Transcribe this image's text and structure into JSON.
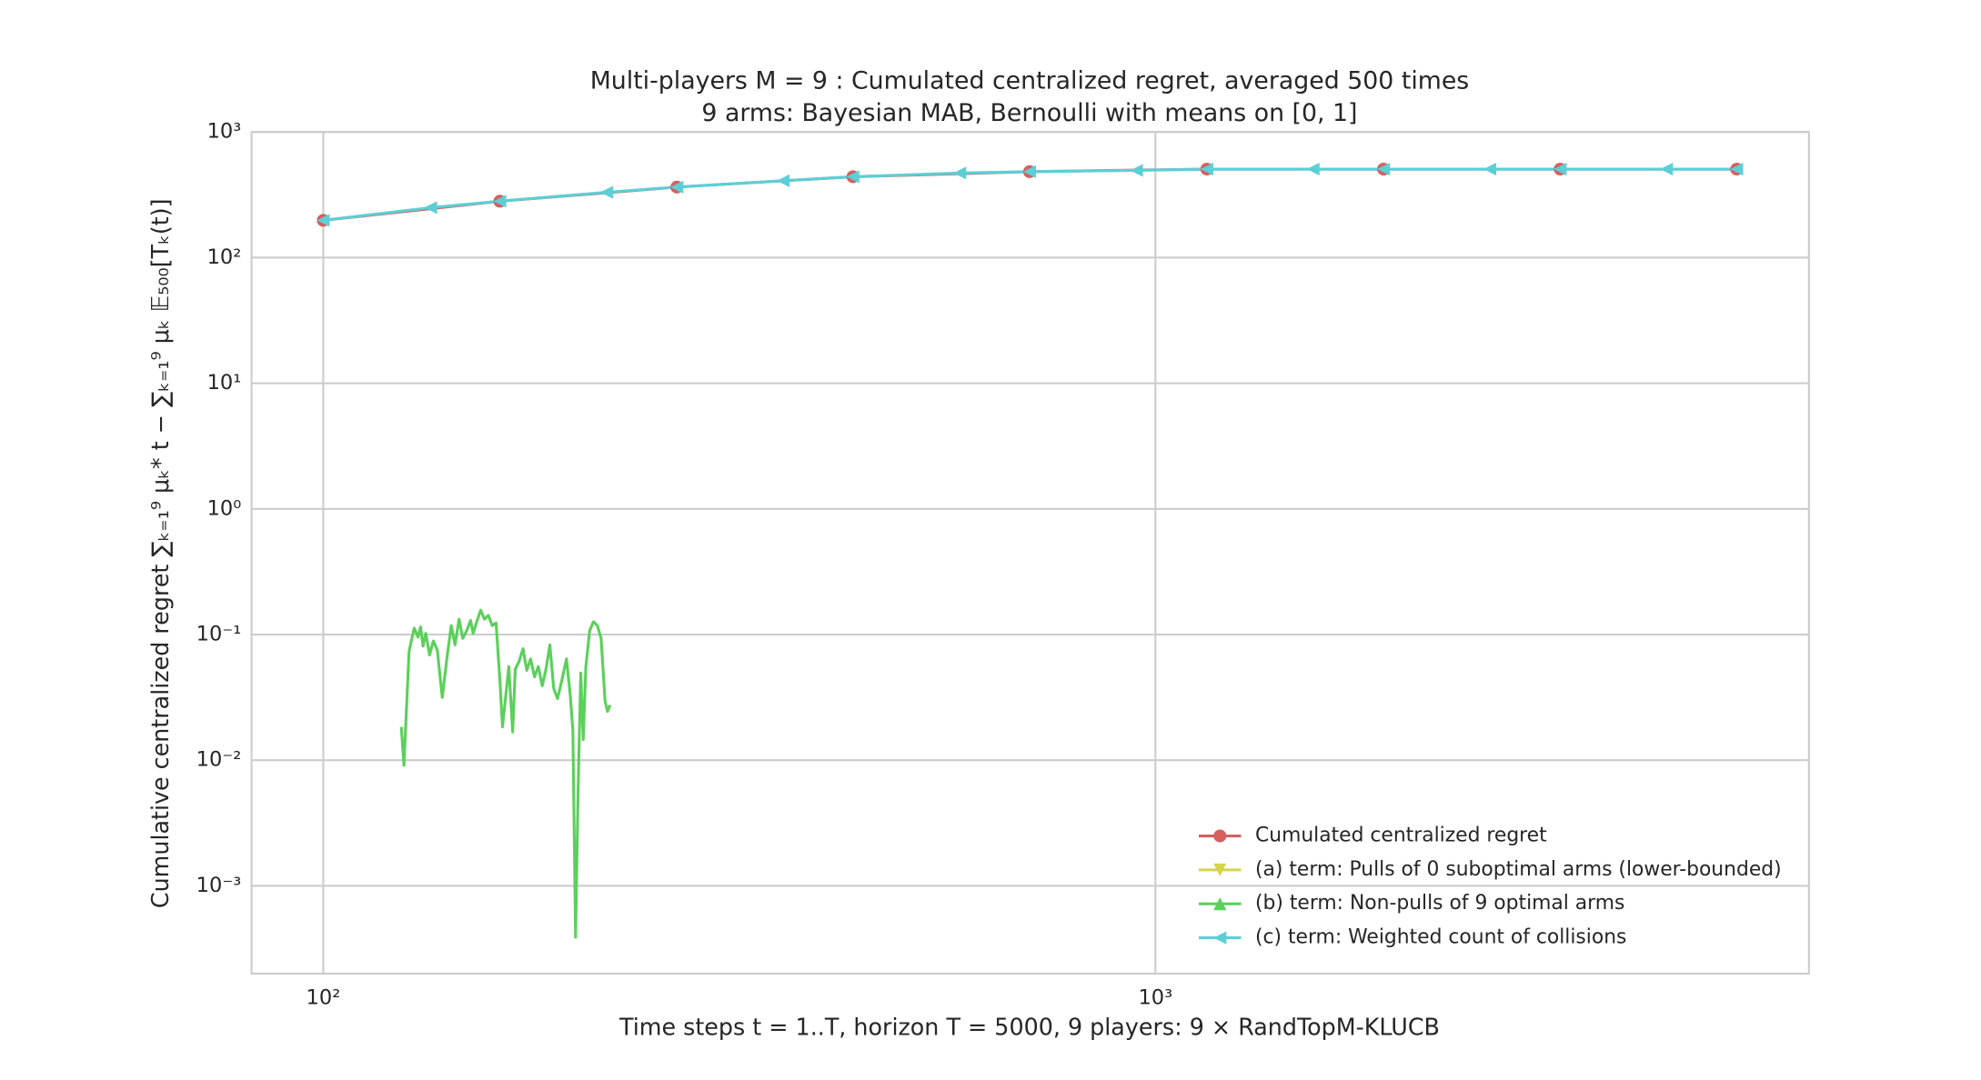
{
  "chart_data": {
    "type": "line",
    "title": "Multi-players M = 9 : Cumulated centralized regret, averaged 500 times",
    "subtitle": "9 arms: Bayesian MAB, Bernoulli with means on [0, 1]",
    "x_label": "Time steps t = 1..T, horizon T = 5000, 9 players: 9 × RandTopM-KLUCB",
    "y_label": "Cumulative centralized regret ∑ₖ₌₁⁹ μₖ* t − ∑ₖ₌₁⁹ μₖ 𝔼₅₀₀[Tₖ(t)]",
    "x_log": true,
    "y_log": true,
    "grid": true,
    "legend_position": "lower right",
    "xlim": [
      82,
      6100
    ],
    "ylim": [
      0.0002,
      1000
    ],
    "xticks": [
      {
        "value": 100,
        "label": "10²"
      },
      {
        "value": 1000,
        "label": "10³"
      }
    ],
    "yticks": [
      {
        "value": 0.001,
        "label": "10⁻³"
      },
      {
        "value": 0.01,
        "label": "10⁻²"
      },
      {
        "value": 0.1,
        "label": "10⁻¹"
      },
      {
        "value": 1,
        "label": "10⁰"
      },
      {
        "value": 10,
        "label": "10¹"
      },
      {
        "value": 100,
        "label": "10²"
      },
      {
        "value": 1000,
        "label": "10³"
      }
    ],
    "series": [
      {
        "name": "Cumulated centralized regret",
        "color": "#d65f5f",
        "marker": "o",
        "show_markers": true,
        "x": [
          100,
          163,
          266,
          433,
          706,
          1153,
          1880,
          3065,
          4995
        ],
        "values": [
          198,
          281,
          364,
          440,
          483,
          506,
          506,
          506,
          506
        ]
      },
      {
        "name": "(a) term: Pulls of 0 suboptimal arms (lower-bounded)",
        "color": "#d5d54a",
        "marker": "v",
        "show_markers": true,
        "x": [],
        "values": []
      },
      {
        "name": "(b) term: Non-pulls of 9 optimal arms",
        "color": "#5bd05b",
        "marker": "^",
        "show_markers": false,
        "x": [
          124.1,
          125.0,
          126.8,
          128.6,
          130.0,
          130.9,
          131.8,
          132.8,
          134.2,
          135.6,
          137.1,
          139.0,
          141.0,
          142.5,
          144.0,
          145.6,
          147.1,
          148.7,
          150.3,
          151.4,
          152.9,
          154.6,
          156.2,
          157.9,
          159.6,
          161.3,
          163.0,
          164.2,
          167.1,
          168.9,
          170.1,
          171.9,
          173.8,
          175.6,
          177.5,
          179.4,
          181.3,
          183.3,
          185.2,
          187.2,
          189.2,
          191.2,
          193.3,
          196.0,
          198.1,
          199.5,
          201.0,
          202.4,
          203.9,
          205.3,
          206.8,
          209.0,
          211.2,
          213.5,
          215.7,
          218.1,
          219.6,
          221.1
        ],
        "values": [
          0.0184,
          0.0091,
          0.0737,
          0.1125,
          0.0954,
          0.1151,
          0.081,
          0.1023,
          0.0687,
          0.0889,
          0.0754,
          0.0316,
          0.0703,
          0.1178,
          0.0828,
          0.1325,
          0.0932,
          0.1073,
          0.1295,
          0.1023,
          0.1265,
          0.1563,
          0.1325,
          0.1422,
          0.1178,
          0.1236,
          0.0439,
          0.0184,
          0.0556,
          0.0168,
          0.053,
          0.0611,
          0.0772,
          0.0518,
          0.064,
          0.046,
          0.0556,
          0.0391,
          0.053,
          0.0828,
          0.0373,
          0.0309,
          0.0419,
          0.064,
          0.0324,
          0.0172,
          0.00039,
          0.0057,
          0.0494,
          0.0146,
          0.0556,
          0.1073,
          0.1265,
          0.1178,
          0.0932,
          0.0294,
          0.0244,
          0.0275
        ]
      },
      {
        "name": "(c) term: Weighted count of collisions",
        "color": "#5bcfd6",
        "marker": "<",
        "show_markers": true,
        "x": [
          100,
          134.6,
          163,
          219,
          266,
          357,
          433,
          582,
          706,
          949,
          1153,
          1547,
          1880,
          2523,
          3065,
          4113,
          4995
        ],
        "values": [
          198,
          250,
          281,
          331,
          364,
          409,
          440,
          471,
          483,
          494,
          506,
          506,
          506,
          506,
          506,
          506,
          506
        ]
      }
    ]
  }
}
